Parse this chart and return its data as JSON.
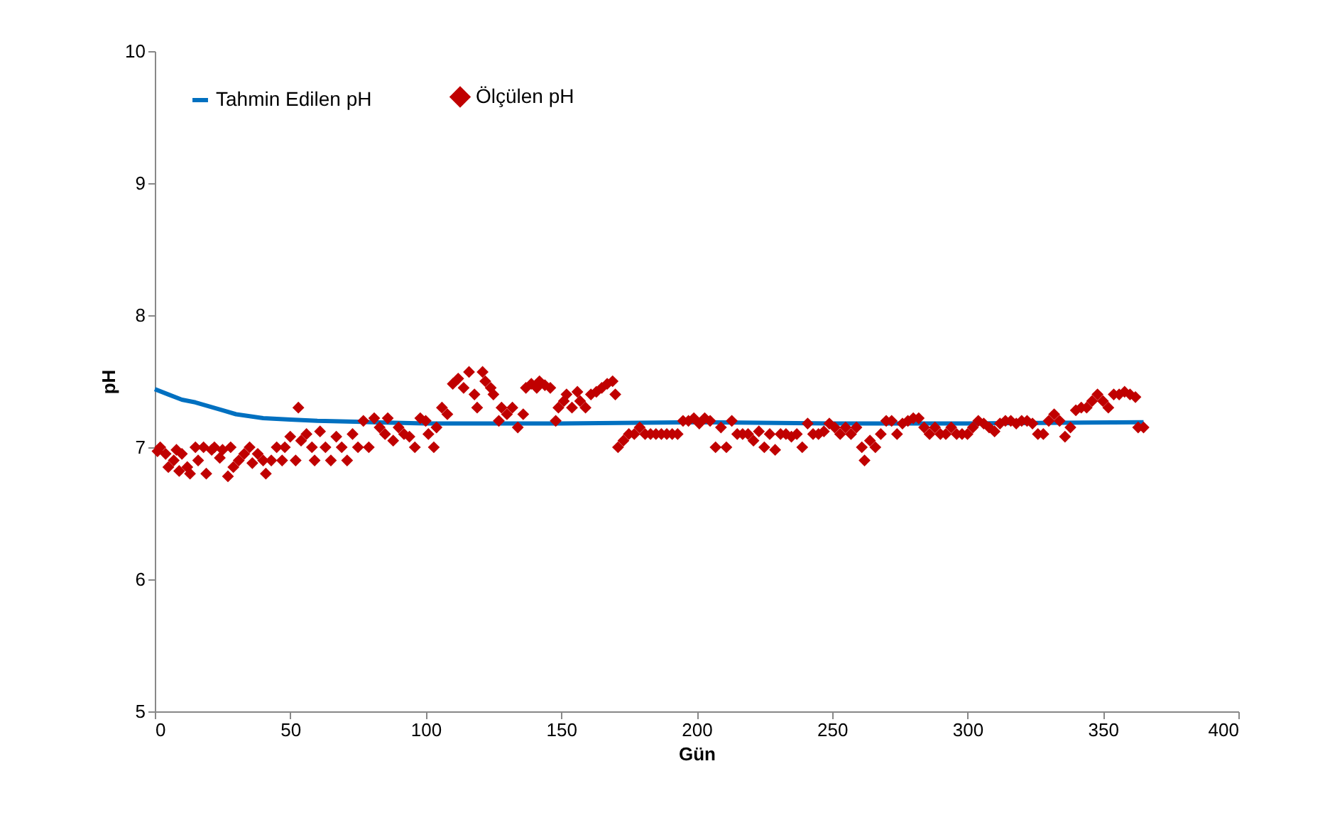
{
  "chart_data": {
    "type": "scatter",
    "xlabel": "Gün",
    "ylabel": "pH",
    "xlim": [
      0,
      400
    ],
    "ylim": [
      5,
      10
    ],
    "xticks": [
      0,
      50,
      100,
      150,
      200,
      250,
      300,
      350,
      400
    ],
    "yticks": [
      5,
      6,
      7,
      8,
      9,
      10
    ],
    "grid": false,
    "legend": "top left",
    "series": [
      {
        "name": "Tahmin Edilen pH",
        "type": "line",
        "color": "#0070c0",
        "x": [
          0,
          5,
          10,
          15,
          20,
          25,
          30,
          40,
          50,
          60,
          80,
          100,
          150,
          200,
          250,
          300,
          365
        ],
        "values": [
          7.44,
          7.4,
          7.36,
          7.34,
          7.31,
          7.28,
          7.25,
          7.22,
          7.21,
          7.2,
          7.19,
          7.18,
          7.18,
          7.19,
          7.18,
          7.18,
          7.19
        ]
      },
      {
        "name": "Ölçülen pH",
        "marker": "diamond",
        "color": "#c00000",
        "x": [
          1,
          2,
          4,
          5,
          7,
          8,
          9,
          10,
          12,
          13,
          15,
          16,
          18,
          19,
          21,
          22,
          24,
          25,
          27,
          28,
          29,
          31,
          33,
          35,
          36,
          38,
          40,
          41,
          43,
          45,
          47,
          48,
          50,
          52,
          53,
          54,
          56,
          58,
          59,
          61,
          63,
          65,
          67,
          69,
          71,
          73,
          75,
          77,
          79,
          81,
          83,
          85,
          86,
          88,
          90,
          92,
          94,
          96,
          98,
          100,
          101,
          103,
          104,
          106,
          108,
          110,
          112,
          114,
          116,
          118,
          119,
          121,
          122,
          124,
          125,
          127,
          128,
          130,
          132,
          134,
          136,
          137,
          139,
          141,
          142,
          144,
          146,
          148,
          149,
          151,
          152,
          154,
          156,
          157,
          159,
          161,
          163,
          165,
          167,
          169,
          170,
          171,
          173,
          175,
          177,
          179,
          181,
          183,
          185,
          187,
          189,
          191,
          193,
          195,
          197,
          199,
          201,
          203,
          205,
          207,
          209,
          211,
          213,
          215,
          217,
          219,
          221,
          223,
          225,
          227,
          229,
          231,
          233,
          235,
          237,
          239,
          241,
          243,
          245,
          247,
          249,
          251,
          253,
          255,
          257,
          259,
          261,
          262,
          264,
          266,
          268,
          270,
          272,
          274,
          276,
          278,
          280,
          282,
          284,
          286,
          288,
          290,
          292,
          294,
          296,
          298,
          300,
          302,
          304,
          306,
          308,
          310,
          312,
          314,
          316,
          318,
          320,
          322,
          324,
          326,
          328,
          330,
          332,
          334,
          336,
          338,
          340,
          342,
          344,
          346,
          348,
          350,
          352,
          354,
          356,
          358,
          360,
          362,
          363,
          365
        ],
        "values": [
          6.97,
          7.0,
          6.95,
          6.85,
          6.9,
          6.98,
          6.82,
          6.95,
          6.85,
          6.8,
          7.0,
          6.9,
          7.0,
          6.8,
          6.98,
          7.0,
          6.92,
          6.98,
          6.78,
          7.0,
          6.85,
          6.9,
          6.95,
          7.0,
          6.88,
          6.95,
          6.9,
          6.8,
          6.9,
          7.0,
          6.9,
          7.0,
          7.08,
          6.9,
          7.3,
          7.05,
          7.1,
          7.0,
          6.9,
          7.12,
          7.0,
          6.9,
          7.08,
          7.0,
          6.9,
          7.1,
          7.0,
          7.2,
          7.0,
          7.22,
          7.15,
          7.1,
          7.22,
          7.05,
          7.15,
          7.1,
          7.08,
          7.0,
          7.22,
          7.2,
          7.1,
          7.0,
          7.15,
          7.3,
          7.25,
          7.48,
          7.52,
          7.45,
          7.57,
          7.4,
          7.3,
          7.57,
          7.5,
          7.45,
          7.4,
          7.2,
          7.3,
          7.25,
          7.3,
          7.15,
          7.25,
          7.45,
          7.48,
          7.45,
          7.5,
          7.47,
          7.45,
          7.2,
          7.3,
          7.35,
          7.4,
          7.3,
          7.42,
          7.35,
          7.3,
          7.4,
          7.42,
          7.45,
          7.48,
          7.5,
          7.4,
          7.0,
          7.05,
          7.1,
          7.1,
          7.15,
          7.1,
          7.1,
          7.1,
          7.1,
          7.1,
          7.1,
          7.1,
          7.2,
          7.2,
          7.22,
          7.18,
          7.22,
          7.2,
          7.0,
          7.15,
          7.0,
          7.2,
          7.1,
          7.1,
          7.1,
          7.05,
          7.12,
          7.0,
          7.1,
          6.98,
          7.1,
          7.1,
          7.08,
          7.1,
          7.0,
          7.18,
          7.1,
          7.1,
          7.12,
          7.18,
          7.15,
          7.1,
          7.15,
          7.1,
          7.15,
          7.0,
          6.9,
          7.05,
          7.0,
          7.1,
          7.2,
          7.2,
          7.1,
          7.18,
          7.2,
          7.22,
          7.22,
          7.15,
          7.1,
          7.15,
          7.1,
          7.1,
          7.15,
          7.1,
          7.1,
          7.1,
          7.15,
          7.2,
          7.18,
          7.15,
          7.12,
          7.18,
          7.2,
          7.2,
          7.18,
          7.2,
          7.2,
          7.18,
          7.1,
          7.1,
          7.2,
          7.25,
          7.2,
          7.08,
          7.15,
          7.28,
          7.3,
          7.3,
          7.35,
          7.4,
          7.35,
          7.3,
          7.4,
          7.4,
          7.42,
          7.4,
          7.38,
          7.15,
          7.15
        ]
      }
    ]
  }
}
